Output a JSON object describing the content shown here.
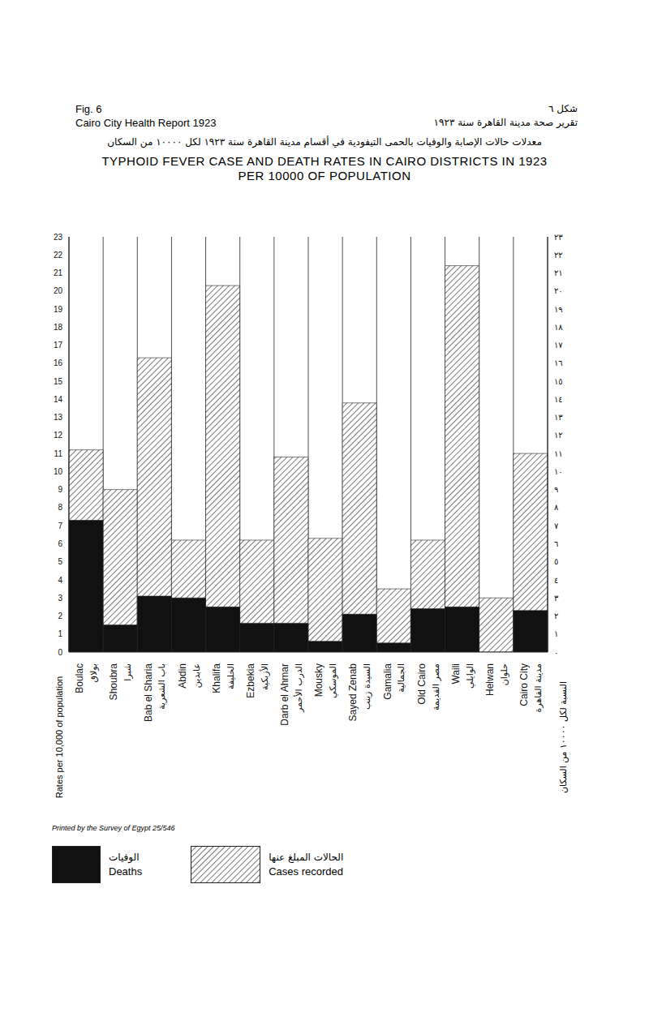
{
  "chart_data": {
    "type": "bar",
    "title": "TYPHOID FEVER CASE AND DEATH RATES IN CAIRO DISTRICTS IN 1923",
    "subtitle": "PER 10000 OF POPULATION",
    "title_ar": "معدلات حالات الإصابة والوفيات بالحمى التيفودية في أقسام مدينة القاهرة سنة ١٩٢٣ لكل ١٠٠٠٠ من السكان",
    "header": {
      "fig": "Fig. 6",
      "report": "Cairo City Health Report 1923",
      "fig_ar": "شكل ٦",
      "report_ar": "تقرير صحة مدينة القاهرة سنة ١٩٢٣"
    },
    "footer": "Printed by the Survey of Egypt 25/546",
    "ylabel": "Rates per 10,000 of population",
    "ylabel_ar": "النسبة لكل ١٠٠٠٠ من السكان",
    "categories": [
      "Boulac",
      "Shoubra",
      "Bab el Sharia",
      "Abdin",
      "Khalifa",
      "Ezbekia",
      "Darb el Ahmar",
      "Mousky",
      "Sayed Zenab",
      "Gamalia",
      "Old Cairo",
      "Waili",
      "Helwan",
      "Cairo City"
    ],
    "categories_ar": [
      "بولاق",
      "شبرا",
      "باب الشعرية",
      "عابدين",
      "الخليفة",
      "الأزبكية",
      "الدرب الأحمر",
      "الموسكي",
      "السيدة زينب",
      "الجمالية",
      "مصر القديمة",
      "الوايلي",
      "حلوان",
      "مدينة القاهرة"
    ],
    "series": [
      {
        "name": "Cases recorded",
        "name_ar": "الحالات المبلغ عنها",
        "color": "#555555",
        "values": [
          11.2,
          9,
          16.3,
          6.2,
          20.3,
          6.2,
          10.8,
          6.3,
          13.8,
          3.5,
          6.2,
          21.4,
          3.0,
          11.0
        ]
      },
      {
        "name": "Deaths",
        "name_ar": "الوفيات",
        "color": "#111111",
        "values": [
          7.3,
          1.5,
          3.1,
          3.0,
          2.5,
          1.6,
          1.6,
          0.6,
          2.1,
          0.5,
          2.4,
          2.5,
          0,
          2.3
        ]
      }
    ],
    "ylim": [
      0,
      23
    ],
    "yticks": [
      0,
      1,
      2,
      3,
      4,
      5,
      6,
      7,
      8,
      9,
      10,
      11,
      12,
      13,
      14,
      15,
      16,
      17,
      18,
      19,
      20,
      21,
      22,
      23
    ],
    "y2lim": [
      0,
      23
    ],
    "y2ticks": [
      {
        "value": 0,
        "label": "٠"
      },
      {
        "value": 1,
        "label": "١"
      },
      {
        "value": 2,
        "label": "٢"
      },
      {
        "value": 3,
        "label": "٣"
      },
      {
        "value": 4,
        "label": "٤"
      },
      {
        "value": 5,
        "label": "٥"
      },
      {
        "value": 6,
        "label": "٦"
      },
      {
        "value": 7,
        "label": "٧"
      },
      {
        "value": 8,
        "label": "٨"
      },
      {
        "value": 9,
        "label": "٩"
      },
      {
        "value": 10,
        "label": "١٠"
      },
      {
        "value": 11,
        "label": "١١"
      },
      {
        "value": 12,
        "label": "١٢"
      },
      {
        "value": 13,
        "label": "١٣"
      },
      {
        "value": 14,
        "label": "١٤"
      },
      {
        "value": 15,
        "label": "١٥"
      },
      {
        "value": 16,
        "label": "١٦"
      },
      {
        "value": 17,
        "label": "١٧"
      },
      {
        "value": 18,
        "label": "١٨"
      },
      {
        "value": 19,
        "label": "١٩"
      },
      {
        "value": 20,
        "label": "٢٠"
      },
      {
        "value": 21,
        "label": "٢١"
      },
      {
        "value": 22,
        "label": "٢٢"
      },
      {
        "value": 23,
        "label": "٢٣"
      }
    ],
    "grid": true
  }
}
